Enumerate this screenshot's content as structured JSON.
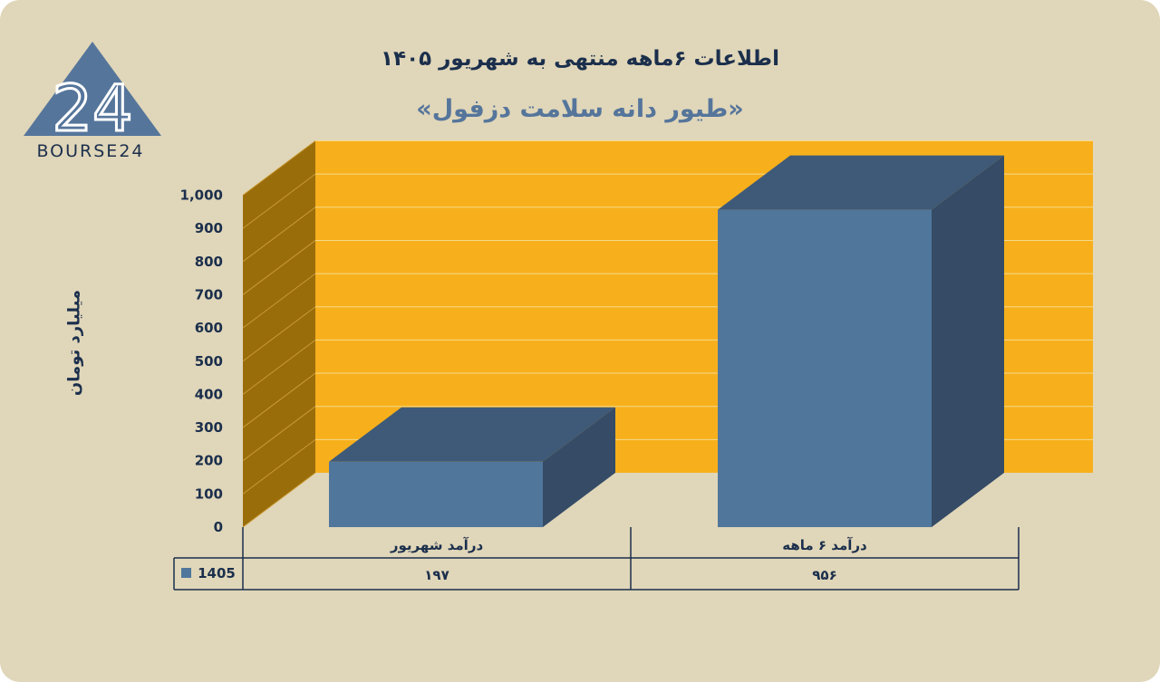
{
  "header": {
    "title": "اطلاعات ۶ماهه منتهی به شهریور ۱۴۰۵",
    "subtitle": "«طیور دانه سلامت دزفول»"
  },
  "logo": {
    "text": "BOURSE24",
    "mark": "24"
  },
  "colors": {
    "background": "#e0d6b9",
    "plot_back": "#f7b01c",
    "plot_side": "#9a6d0b",
    "bar_front": "#50769b",
    "bar_top": "#3e5a78",
    "bar_side": "#354b66",
    "text": "#1b2f4c"
  },
  "chart_data": {
    "type": "bar",
    "title": "اطلاعات ۶ماهه منتهی به شهریور ۱۴۰۵",
    "subtitle": "«طیور دانه سلامت دزفول»",
    "ylabel": "میلیارد تومان",
    "ylim": [
      0,
      1000
    ],
    "yticks": [
      "0",
      "100",
      "200",
      "300",
      "400",
      "500",
      "600",
      "700",
      "800",
      "900",
      "1,000"
    ],
    "categories": [
      "درآمد شهریور",
      "درآمد ۶ ماهه"
    ],
    "series": [
      {
        "name": "1405",
        "values": [
          197,
          956
        ],
        "labels": [
          "۱۹۷",
          "۹۵۶"
        ]
      }
    ],
    "grid": true,
    "legend": "data-table"
  }
}
